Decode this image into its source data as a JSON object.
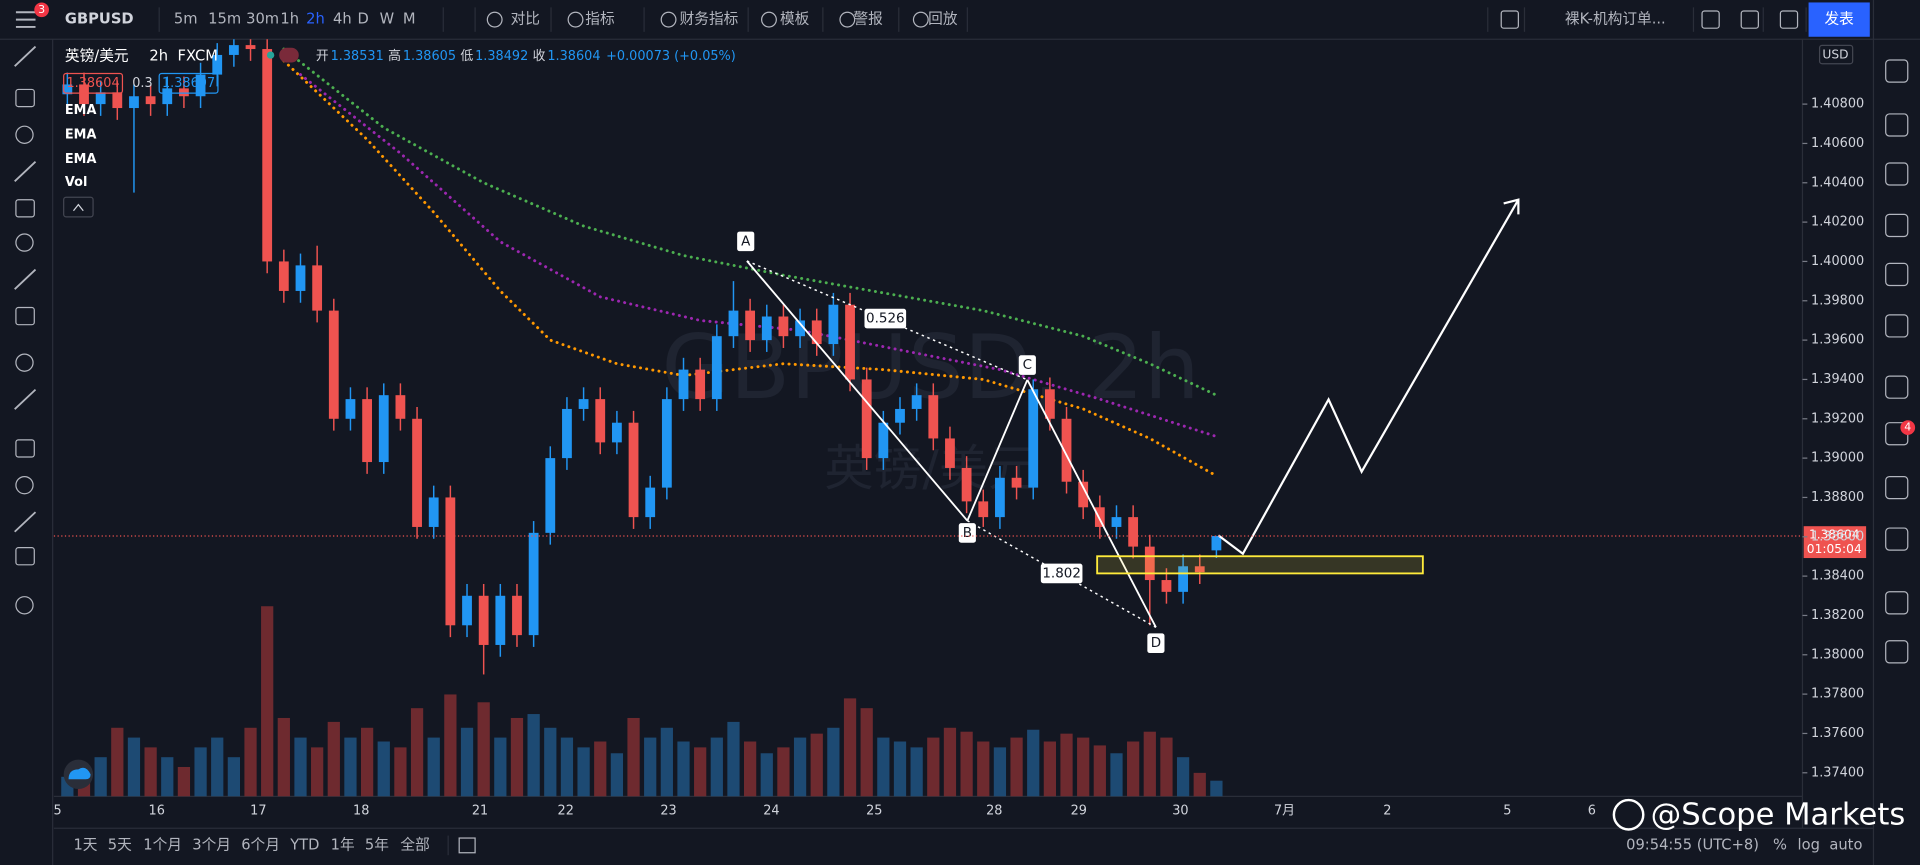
{
  "toolbar": {
    "symbol": "GBPUSD",
    "intervals": [
      "5m",
      "15m",
      "30m",
      "1h",
      "2h",
      "4h",
      "D",
      "W",
      "M"
    ],
    "buttons": [
      "对比",
      "指标",
      "财务指标",
      "模板",
      "警报",
      "回放"
    ],
    "layout_name": "裸K-机构订单...",
    "publish": "发表",
    "notification_count": 3
  },
  "legend": {
    "name": "英镑/美元",
    "interval": "2h",
    "source": "FXCM",
    "ohlc": [
      [
        "开",
        "1.38531"
      ],
      [
        "高",
        "1.38605"
      ],
      [
        "低",
        "1.38492"
      ],
      [
        "收",
        "1.38604"
      ]
    ],
    "change": "+0.00073 (+0.05%)",
    "bid": "1.38604",
    "spread": "0.3",
    "ask": "1.38607",
    "indicators": [
      "EMA",
      "EMA",
      "EMA",
      "Vol"
    ]
  },
  "watermark": {
    "symbol": "GBPUSD, 2h",
    "name": "英镑/美元"
  },
  "chart_data": {
    "type": "candlestick",
    "open": [
      1.4085,
      1.409,
      1.408,
      1.4086,
      1.4078,
      1.4084,
      1.408,
      1.4088,
      1.4084,
      1.4095,
      1.4105,
      1.411,
      1.4108,
      1.4,
      1.3985,
      1.3998,
      1.3975,
      1.392,
      1.393,
      1.3898,
      1.3932,
      1.392,
      1.3865,
      1.388,
      1.3815,
      1.383,
      1.3805,
      1.383,
      1.381,
      1.3862,
      1.39,
      1.3925,
      1.393,
      1.3908,
      1.3918,
      1.387,
      1.3885,
      1.393,
      1.3945,
      1.393,
      1.3962,
      1.3975,
      1.396,
      1.3972,
      1.3962,
      1.397,
      1.3958,
      1.3978,
      1.394,
      1.39,
      1.3918,
      1.3925,
      1.3932,
      1.391,
      1.3895,
      1.3878,
      1.387,
      1.389,
      1.3885,
      1.3935,
      1.392,
      1.3888,
      1.3875,
      1.3865,
      1.387,
      1.3855,
      1.3838,
      1.3832,
      1.3845,
      1.38531
    ],
    "high": [
      1.4096,
      1.4096,
      1.4092,
      1.4092,
      1.409,
      1.409,
      1.4094,
      1.4094,
      1.4101,
      1.4111,
      1.4116,
      1.4116,
      1.4115,
      1.4006,
      1.4004,
      1.4008,
      1.3981,
      1.3936,
      1.3936,
      1.3938,
      1.3938,
      1.3926,
      1.3886,
      1.3886,
      1.3836,
      1.3836,
      1.3836,
      1.3836,
      1.3868,
      1.3906,
      1.3931,
      1.3936,
      1.3936,
      1.3924,
      1.3924,
      1.3891,
      1.3936,
      1.3951,
      1.3951,
      1.3968,
      1.399,
      1.3981,
      1.3978,
      1.3978,
      1.3976,
      1.3976,
      1.3984,
      1.3984,
      1.3946,
      1.3924,
      1.3931,
      1.3938,
      1.3938,
      1.3916,
      1.3901,
      1.3884,
      1.3896,
      1.3896,
      1.394,
      1.3941,
      1.3926,
      1.3894,
      1.3881,
      1.3876,
      1.3876,
      1.3861,
      1.3844,
      1.3851,
      1.3851,
      1.38605
    ],
    "low": [
      1.4079,
      1.4074,
      1.4074,
      1.4072,
      1.4035,
      1.4074,
      1.4074,
      1.4078,
      1.4078,
      1.4089,
      1.4099,
      1.4102,
      1.3994,
      1.3979,
      1.3979,
      1.3969,
      1.3914,
      1.3914,
      1.3892,
      1.3892,
      1.3914,
      1.3859,
      1.3859,
      1.3809,
      1.3809,
      1.379,
      1.3799,
      1.3804,
      1.3804,
      1.3856,
      1.3894,
      1.3919,
      1.3902,
      1.3902,
      1.3864,
      1.3864,
      1.3879,
      1.3924,
      1.3924,
      1.3924,
      1.3956,
      1.3954,
      1.3954,
      1.3956,
      1.3956,
      1.3952,
      1.3952,
      1.3934,
      1.3894,
      1.3894,
      1.3912,
      1.3919,
      1.3904,
      1.3889,
      1.3872,
      1.3865,
      1.3864,
      1.3879,
      1.3879,
      1.3914,
      1.3882,
      1.3869,
      1.3859,
      1.3859,
      1.3849,
      1.3815,
      1.3826,
      1.3826,
      1.3836,
      1.38492
    ],
    "close": [
      1.409,
      1.408,
      1.4086,
      1.4078,
      1.4084,
      1.408,
      1.4088,
      1.4084,
      1.4095,
      1.4105,
      1.411,
      1.4108,
      1.4,
      1.3985,
      1.3998,
      1.3975,
      1.392,
      1.393,
      1.3898,
      1.3932,
      1.392,
      1.3865,
      1.388,
      1.3815,
      1.383,
      1.3805,
      1.383,
      1.381,
      1.3862,
      1.39,
      1.3925,
      1.393,
      1.3908,
      1.3918,
      1.387,
      1.3885,
      1.393,
      1.3945,
      1.393,
      1.3962,
      1.3975,
      1.396,
      1.3972,
      1.3962,
      1.397,
      1.3958,
      1.3978,
      1.394,
      1.39,
      1.3918,
      1.3925,
      1.3932,
      1.391,
      1.3895,
      1.3878,
      1.387,
      1.389,
      1.3885,
      1.3935,
      1.392,
      1.3888,
      1.3875,
      1.3865,
      1.387,
      1.3855,
      1.3838,
      1.3832,
      1.3845,
      1.3842,
      1.38604
    ],
    "volume": [
      10,
      15,
      20,
      35,
      30,
      25,
      20,
      15,
      25,
      30,
      20,
      35,
      97,
      40,
      30,
      25,
      38,
      30,
      35,
      28,
      25,
      45,
      30,
      52,
      35,
      48,
      30,
      40,
      42,
      35,
      30,
      25,
      28,
      22,
      40,
      30,
      35,
      28,
      25,
      30,
      38,
      28,
      22,
      25,
      30,
      32,
      35,
      50,
      45,
      30,
      28,
      25,
      30,
      35,
      33,
      28,
      25,
      30,
      34,
      28,
      32,
      30,
      26,
      22,
      28,
      33,
      30,
      20,
      12,
      8
    ],
    "volume_lim": [
      0,
      100
    ],
    "ylim": [
      1.3728,
      1.4113
    ],
    "yticks": [
      {
        "value": 1.374,
        "label": "1.37400"
      },
      {
        "value": 1.376,
        "label": "1.37600"
      },
      {
        "value": 1.378,
        "label": "1.37800"
      },
      {
        "value": 1.38,
        "label": "1.38000"
      },
      {
        "value": 1.382,
        "label": "1.38200"
      },
      {
        "value": 1.384,
        "label": "1.38400"
      },
      {
        "value": 1.386,
        "label": "1.38600"
      },
      {
        "value": 1.388,
        "label": "1.38800"
      },
      {
        "value": 1.39,
        "label": "1.39000"
      },
      {
        "value": 1.392,
        "label": "1.39200"
      },
      {
        "value": 1.394,
        "label": "1.39400"
      },
      {
        "value": 1.396,
        "label": "1.39600"
      },
      {
        "value": 1.398,
        "label": "1.39800"
      },
      {
        "value": 1.4,
        "label": "1.40000"
      },
      {
        "value": 1.402,
        "label": "1.40200"
      },
      {
        "value": 1.404,
        "label": "1.40400"
      },
      {
        "value": 1.406,
        "label": "1.40600"
      },
      {
        "value": 1.408,
        "label": "1.40800"
      }
    ],
    "currency": "USD",
    "x_labels": [
      "5",
      "16",
      "17",
      "18",
      "21",
      "22",
      "23",
      "24",
      "25",
      "28",
      "29",
      "30",
      "7月",
      "2",
      "5",
      "6"
    ],
    "last_price_label": "1.38604",
    "countdown": "01:05:04",
    "emas": [
      {
        "name": "EMA",
        "color": "#4caf50",
        "x": [
          13,
          19,
          25,
          31,
          37,
          43,
          49,
          55,
          61,
          65,
          69
        ],
        "values": [
          1.4108,
          1.4068,
          1.404,
          1.4018,
          1.4003,
          1.3993,
          1.3984,
          1.3975,
          1.3962,
          1.3948,
          1.3932
        ]
      },
      {
        "name": "EMA",
        "color": "#9c27b0",
        "x": [
          14,
          20,
          26,
          32,
          38,
          44,
          50,
          56,
          62,
          69
        ],
        "values": [
          1.4095,
          1.4055,
          1.401,
          1.3982,
          1.397,
          1.3965,
          1.3955,
          1.3945,
          1.393,
          1.3911
        ]
      },
      {
        "name": "EMA",
        "color": "#ff9800",
        "x": [
          13,
          18,
          22,
          26,
          29,
          33,
          37,
          43,
          49,
          55,
          61,
          65,
          69
        ],
        "values": [
          1.4102,
          1.4062,
          1.4025,
          1.3985,
          1.396,
          1.3948,
          1.3942,
          1.3948,
          1.3945,
          1.394,
          1.3925,
          1.391,
          1.3891
        ]
      }
    ],
    "colors": {
      "up": "#2196f3",
      "down": "#ef5350",
      "volume_up": "#1d4a73",
      "volume_down": "#6e2a2f"
    },
    "pattern": {
      "points": [
        "A",
        "B",
        "C",
        "D"
      ],
      "ratios": [
        0.526,
        1.802
      ]
    }
  },
  "bottom_bar": {
    "ranges": [
      "1天",
      "5天",
      "1个月",
      "3个月",
      "6个月",
      "YTD",
      "1年",
      "5年",
      "全部"
    ],
    "clock": "09:54:55 (UTC+8)",
    "options": [
      "%",
      "log",
      "auto"
    ]
  },
  "branding": "@Scope Markets",
  "sidebar_badge": 4
}
